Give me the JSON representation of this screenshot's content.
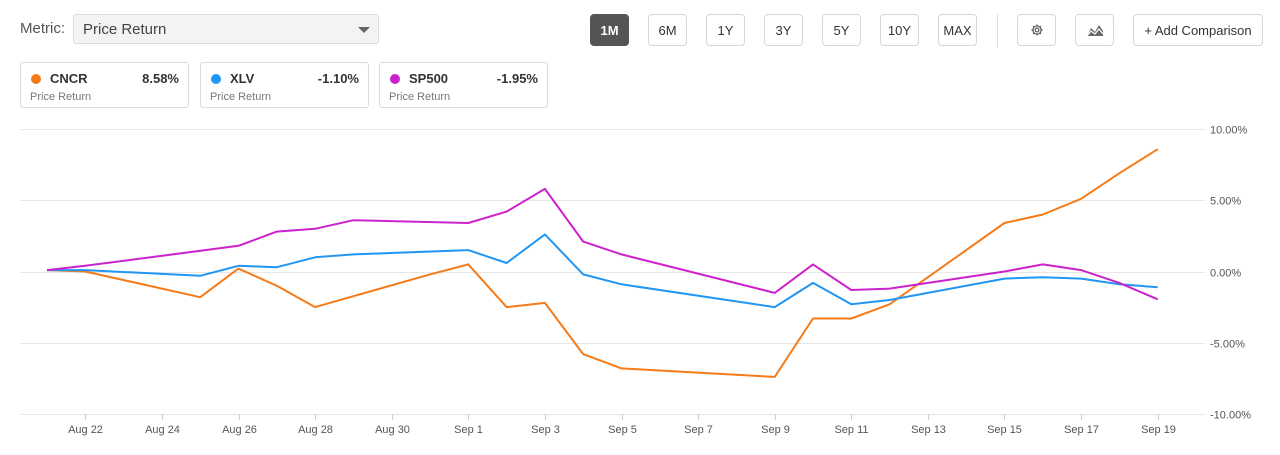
{
  "metric": {
    "label": "Metric:",
    "value": "Price Return"
  },
  "ranges": [
    "1M",
    "6M",
    "1Y",
    "3Y",
    "5Y",
    "10Y",
    "MAX"
  ],
  "active_range": "1M",
  "icons": {
    "settings": "gear-icon",
    "chart_type": "area-chart-icon"
  },
  "add_comparison": "+ Add Comparison",
  "legend": [
    {
      "symbol": "CNCR",
      "value": "8.58%",
      "metric": "Price Return",
      "color": "#f57b19"
    },
    {
      "symbol": "XLV",
      "value": "-1.10%",
      "metric": "Price Return",
      "color": "#2196f3"
    },
    {
      "symbol": "SP500",
      "value": "-1.95%",
      "metric": "Price Return",
      "color": "#cc22cc"
    }
  ],
  "chart_data": {
    "type": "line",
    "title": "",
    "xlabel": "",
    "ylabel": "",
    "x_ticks": [
      "Aug 22",
      "Aug 24",
      "Aug 26",
      "Aug 28",
      "Aug 30",
      "Sep 1",
      "Sep 3",
      "Sep 5",
      "Sep 7",
      "Sep 9",
      "Sep 11",
      "Sep 13",
      "Sep 15",
      "Sep 17",
      "Sep 19"
    ],
    "x_range": [
      "Aug 21",
      "Sep 19"
    ],
    "y_ticks": [
      "10.00%",
      "5.00%",
      "0.00%",
      "-5.00%",
      "-10.00%"
    ],
    "ylim": [
      -10,
      10
    ],
    "grid": "horizontal",
    "series": [
      {
        "name": "CNCR",
        "color": "#f57b19",
        "dates": [
          "Aug 21",
          "Aug 22",
          "Aug 25",
          "Aug 26",
          "Aug 27",
          "Aug 28",
          "Aug 31",
          "Sep 1",
          "Sep 2",
          "Sep 3",
          "Sep 4",
          "Sep 5",
          "Sep 9",
          "Sep 10",
          "Sep 11",
          "Sep 12",
          "Sep 15",
          "Sep 16",
          "Sep 17",
          "Sep 18",
          "Sep 19"
        ],
        "values": [
          0.1,
          0.0,
          -1.8,
          0.2,
          -1.0,
          -2.5,
          -0.2,
          0.5,
          -2.5,
          -2.2,
          -5.8,
          -6.8,
          -7.4,
          -3.3,
          -3.3,
          -2.3,
          3.4,
          4.0,
          5.1,
          6.9,
          8.58
        ]
      },
      {
        "name": "XLV",
        "color": "#2196f3",
        "dates": [
          "Aug 21",
          "Aug 22",
          "Aug 25",
          "Aug 26",
          "Aug 27",
          "Aug 28",
          "Aug 29",
          "Sep 1",
          "Sep 2",
          "Sep 3",
          "Sep 4",
          "Sep 5",
          "Sep 9",
          "Sep 10",
          "Sep 11",
          "Sep 12",
          "Sep 15",
          "Sep 16",
          "Sep 17",
          "Sep 18",
          "Sep 19"
        ],
        "values": [
          0.1,
          0.1,
          -0.3,
          0.4,
          0.3,
          1.0,
          1.2,
          1.5,
          0.6,
          2.6,
          -0.2,
          -0.9,
          -2.5,
          -0.8,
          -2.3,
          -2.0,
          -0.5,
          -0.4,
          -0.5,
          -0.9,
          -1.1
        ]
      },
      {
        "name": "SP500",
        "color": "#cc22cc",
        "dates": [
          "Aug 21",
          "Aug 22",
          "Aug 26",
          "Aug 27",
          "Aug 28",
          "Aug 29",
          "Sep 1",
          "Sep 2",
          "Sep 3",
          "Sep 4",
          "Sep 5",
          "Sep 9",
          "Sep 10",
          "Sep 11",
          "Sep 12",
          "Sep 15",
          "Sep 16",
          "Sep 17",
          "Sep 18",
          "Sep 19"
        ],
        "values": [
          0.1,
          0.4,
          1.8,
          2.8,
          3.0,
          3.6,
          3.4,
          4.2,
          5.8,
          2.1,
          1.2,
          -1.5,
          0.5,
          -1.3,
          -1.2,
          0.0,
          0.5,
          0.1,
          -0.8,
          -1.95
        ]
      }
    ]
  }
}
